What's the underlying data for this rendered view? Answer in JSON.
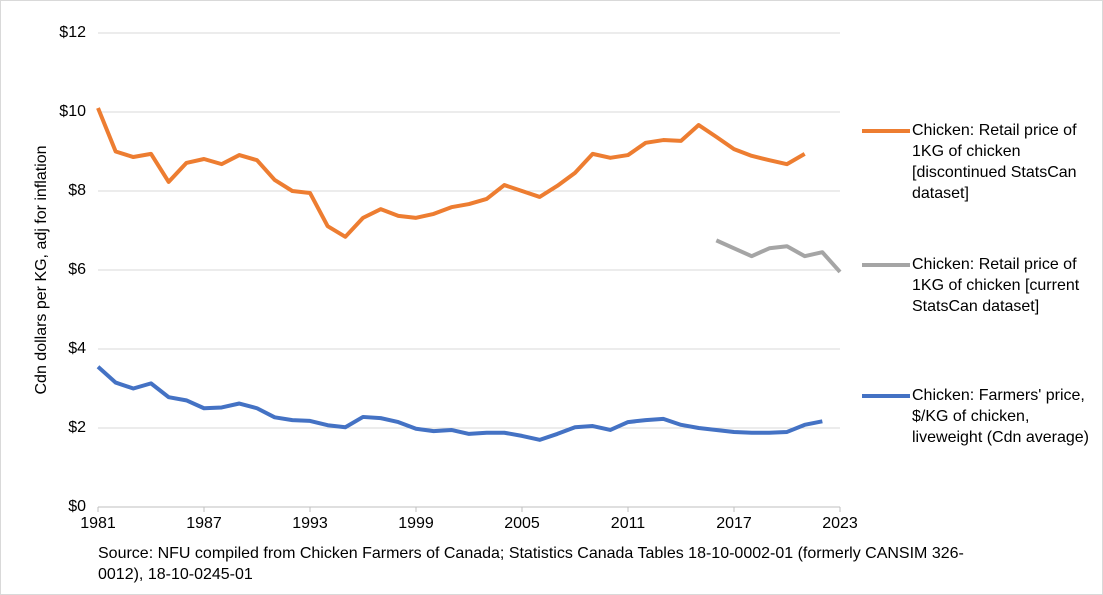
{
  "chart_data": {
    "type": "line",
    "ylabel": "Cdn dollars per KG, adj for inflation",
    "source": "Source: NFU compiled from Chicken Farmers of Canada; Statistics Canada Tables 18-10-0002-01 (formerly CANSIM 326-0012), 18-10-0245-01",
    "x": [
      1981,
      1982,
      1983,
      1984,
      1985,
      1986,
      1987,
      1988,
      1989,
      1990,
      1991,
      1992,
      1993,
      1994,
      1995,
      1996,
      1997,
      1998,
      1999,
      2000,
      2001,
      2002,
      2003,
      2004,
      2005,
      2006,
      2007,
      2008,
      2009,
      2010,
      2011,
      2012,
      2013,
      2014,
      2015,
      2016,
      2017,
      2018,
      2019,
      2020,
      2021,
      2022,
      2023
    ],
    "series": [
      {
        "name": "Chicken: Retail price of 1KG of chicken [discontinued StatsCan dataset]",
        "color": "#ed7d31",
        "values": [
          10.1,
          9.0,
          8.86,
          8.94,
          8.23,
          8.71,
          8.81,
          8.68,
          8.91,
          8.78,
          8.28,
          8.0,
          7.95,
          7.11,
          6.84,
          7.32,
          7.54,
          7.37,
          7.32,
          7.42,
          7.59,
          7.67,
          7.8,
          8.15,
          8.0,
          7.85,
          8.13,
          8.46,
          8.94,
          8.84,
          8.91,
          9.22,
          9.29,
          9.27,
          9.67,
          9.37,
          9.06,
          8.89,
          8.78,
          8.68,
          8.94,
          null,
          null
        ]
      },
      {
        "name": "Chicken: Retail price of 1KG of chicken [current StatsCan dataset]",
        "color": "#a5a5a5",
        "values": [
          null,
          null,
          null,
          null,
          null,
          null,
          null,
          null,
          null,
          null,
          null,
          null,
          null,
          null,
          null,
          null,
          null,
          null,
          null,
          null,
          null,
          null,
          null,
          null,
          null,
          null,
          null,
          null,
          null,
          null,
          null,
          null,
          null,
          null,
          null,
          6.75,
          6.55,
          6.35,
          6.55,
          6.6,
          6.35,
          6.45,
          5.95
        ]
      },
      {
        "name": "Chicken: Farmers' price, $/KG of chicken, liveweight (Cdn average)",
        "color": "#4472c4",
        "values": [
          3.55,
          3.15,
          3.0,
          3.13,
          2.78,
          2.7,
          2.5,
          2.52,
          2.62,
          2.5,
          2.27,
          2.2,
          2.18,
          2.07,
          2.02,
          2.28,
          2.25,
          2.15,
          1.98,
          1.92,
          1.95,
          1.85,
          1.88,
          1.88,
          1.8,
          1.7,
          1.85,
          2.02,
          2.05,
          1.95,
          2.15,
          2.2,
          2.23,
          2.08,
          2.0,
          1.95,
          1.9,
          1.88,
          1.88,
          1.9,
          2.08,
          2.17,
          null
        ]
      }
    ],
    "xlim": [
      1981,
      2023
    ],
    "xticks": [
      1981,
      1987,
      1993,
      1999,
      2005,
      2011,
      2017,
      2023
    ],
    "ylim": [
      0,
      12
    ],
    "yticks": [
      {
        "value": 0,
        "label": "$0"
      },
      {
        "value": 2,
        "label": "$2"
      },
      {
        "value": 4,
        "label": "$4"
      },
      {
        "value": 6,
        "label": "$6"
      },
      {
        "value": 8,
        "label": "$8"
      },
      {
        "value": 10,
        "label": "$10"
      },
      {
        "value": 12,
        "label": "$12"
      }
    ],
    "grid": true,
    "legend": "right"
  }
}
